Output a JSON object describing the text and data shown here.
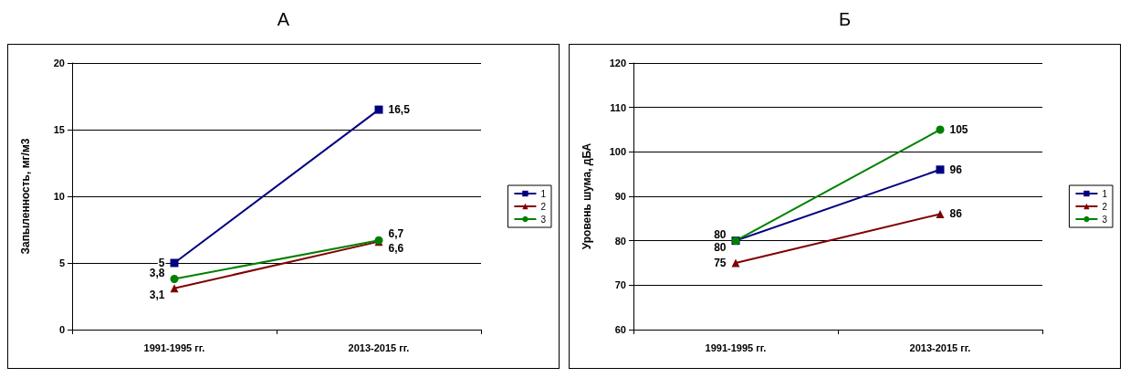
{
  "chart_data": [
    {
      "type": "line",
      "title": "А",
      "ylabel": "Запыленность, мг/м3",
      "categories": [
        "1991-1995 гг.",
        "2013-2015 гг."
      ],
      "ylim": [
        0,
        20
      ],
      "yticks": [
        0,
        5,
        10,
        15,
        20
      ],
      "grid": "y",
      "legend": "right",
      "series": [
        {
          "name": "1",
          "color": "#000080",
          "marker": "square",
          "values": [
            5,
            16.5
          ],
          "value_labels": [
            "5",
            "16,5"
          ]
        },
        {
          "name": "2",
          "color": "#800000",
          "marker": "triangle",
          "values": [
            3.1,
            6.6
          ],
          "value_labels": [
            "3,1",
            "6,6"
          ]
        },
        {
          "name": "3",
          "color": "#008000",
          "marker": "circle",
          "values": [
            3.8,
            6.7
          ],
          "value_labels": [
            "3,8",
            "6,7"
          ]
        }
      ]
    },
    {
      "type": "line",
      "title": "Б",
      "ylabel": "Уровень шума, дБА",
      "categories": [
        "1991-1995 гг.",
        "2013-2015 гг."
      ],
      "ylim": [
        60,
        120
      ],
      "yticks": [
        60,
        70,
        80,
        90,
        100,
        110,
        120
      ],
      "grid": "y",
      "legend": "right",
      "series": [
        {
          "name": "1",
          "color": "#000080",
          "marker": "square",
          "values": [
            80,
            96
          ],
          "value_labels": [
            "80",
            "96"
          ]
        },
        {
          "name": "2",
          "color": "#800000",
          "marker": "triangle",
          "values": [
            75,
            86
          ],
          "value_labels": [
            "75",
            "86"
          ]
        },
        {
          "name": "3",
          "color": "#008000",
          "marker": "circle",
          "values": [
            80,
            105
          ],
          "value_labels": [
            "80",
            "105"
          ]
        }
      ]
    }
  ]
}
